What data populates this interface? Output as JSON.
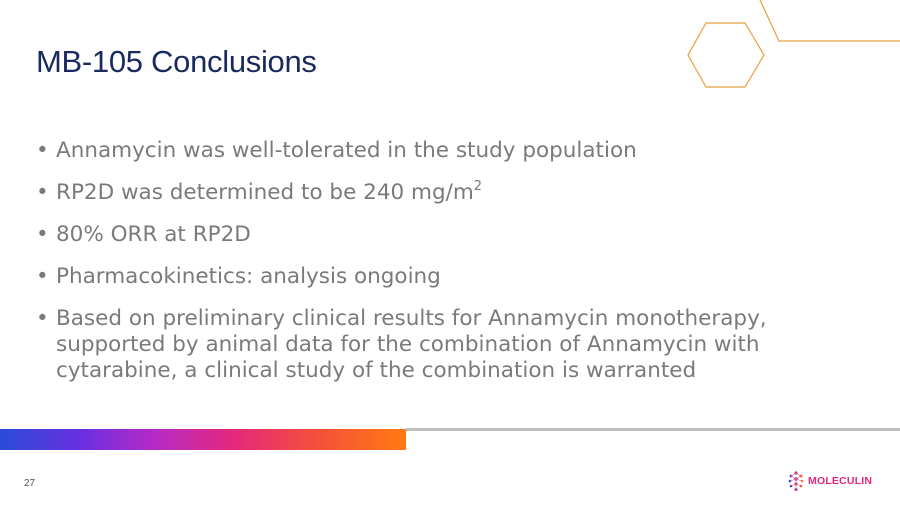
{
  "slide": {
    "title": "MB-105 Conclusions",
    "bullets": [
      {
        "text": "Annamycin was well-tolerated in the study population"
      },
      {
        "text": "RP2D was determined to be 240 mg/m",
        "sup": "2"
      },
      {
        "text": "80% ORR at RP2D"
      },
      {
        "text": "Pharmacokinetics: analysis ongoing"
      },
      {
        "text": "Based on preliminary clinical results for Annamycin monotherapy, supported by animal data for the combination of Annamycin with cytarabine, a clinical study of the combination is warranted"
      }
    ],
    "bullet_glyph": "•",
    "page_number": "27",
    "logo_text": "MOLECULIN"
  },
  "colors": {
    "title": "#1a2a5e",
    "body_text": "#7a7a7a",
    "accent_orange": "#e8a040",
    "gradient_start": "#2a4bd7",
    "gradient_end": "#ff7a12",
    "logo": "#e5287a"
  }
}
